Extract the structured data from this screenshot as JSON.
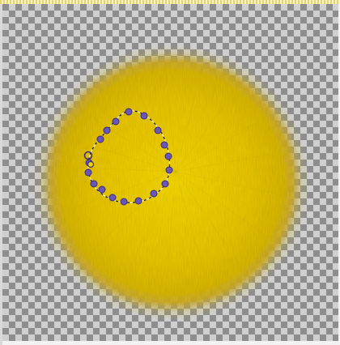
{
  "app": "image-editor-canvas",
  "canvas": {
    "transparency_pattern": {
      "light": "#cfcfcf",
      "dark": "#8e8e8e"
    },
    "layer": {
      "content": "yellow-radial-fur-disc",
      "center_color": "#f2d000",
      "mid_color": "#e7c400",
      "edge_color": "#c9aa00"
    },
    "path_tool": {
      "name": "paths-tool",
      "node_count": 20,
      "node_color": "#6a55b8",
      "closed": true
    }
  }
}
